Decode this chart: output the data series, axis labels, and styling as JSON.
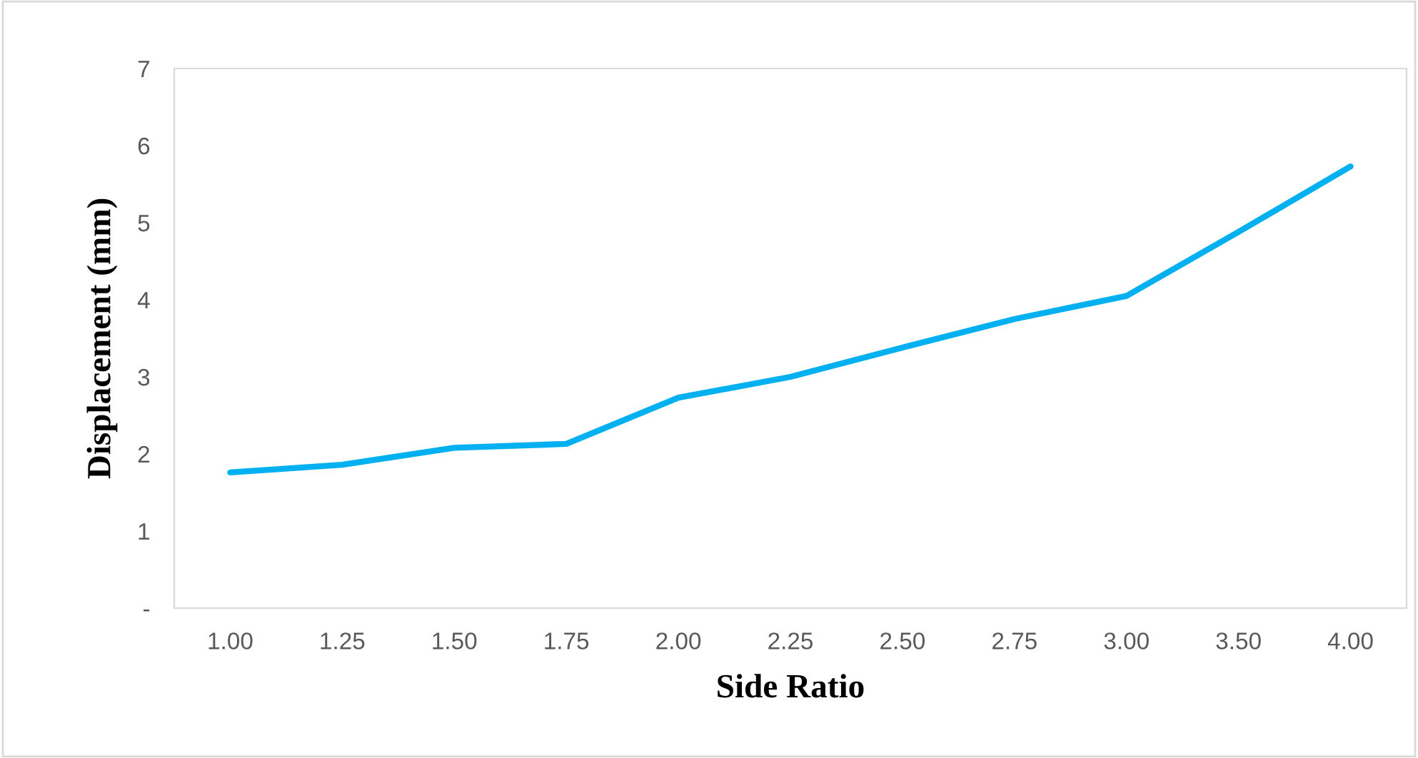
{
  "chart_data": {
    "type": "line",
    "xlabel": "Side Ratio",
    "ylabel": "Displacement (mm)",
    "categories": [
      "1.00",
      "1.25",
      "1.50",
      "1.75",
      "2.00",
      "2.25",
      "2.50",
      "2.75",
      "3.00",
      "3.50",
      "4.00"
    ],
    "series": [
      {
        "color": "#00b0f0",
        "values": [
          1.76,
          1.86,
          2.08,
          2.13,
          2.73,
          3.0,
          3.38,
          3.75,
          4.05,
          4.88,
          5.73
        ]
      }
    ],
    "ylim": [
      0,
      7
    ],
    "yticks": [
      {
        "value": 0,
        "label": "-"
      },
      1,
      2,
      3,
      4,
      5,
      6,
      7
    ],
    "grid": false,
    "marker": "none",
    "line_style": "solid"
  }
}
